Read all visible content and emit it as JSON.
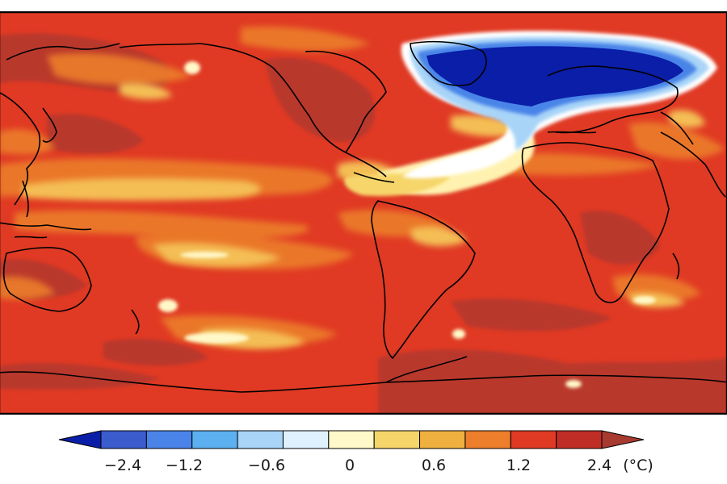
{
  "map": {
    "projection": "equirectangular",
    "center_longitude": "Pacific-centred world map",
    "background_color": "#e03a24",
    "coastline_color": "#000000",
    "regions": [
      {
        "name": "north-atlantic-cooling-region",
        "value_band": "≤ -2.4",
        "color": "#0a1ea8"
      },
      {
        "name": "subpolar-gyre-edge",
        "value_band": "-0.6 to 0.6",
        "color": "#a8d4f8"
      },
      {
        "name": "tropical-atlantic-neutral-band",
        "value_band": "0 to 0.6",
        "color": "#fff8c8"
      },
      {
        "name": "pacific-warm-tongue",
        "value_band": "0.6 to 1.2",
        "color": "#f0b040"
      },
      {
        "name": "southern-ocean-strong-warming",
        "value_band": "≥ 2.4",
        "color": "#b03a30"
      }
    ]
  },
  "colorbar": {
    "unit": "(°C)",
    "tick_labels": [
      "−2.4",
      "−1.2",
      "−0.6",
      "0",
      "0.6",
      "1.2",
      "2.4"
    ],
    "colors": [
      "#0a1ea8",
      "#3a5ccc",
      "#4a84e8",
      "#5cb0f0",
      "#a8d4f8",
      "#dff0fe",
      "#fff8c8",
      "#f6d66a",
      "#f0b040",
      "#ec7e2c",
      "#e03a24",
      "#bf2e26",
      "#a83a30"
    ]
  }
}
